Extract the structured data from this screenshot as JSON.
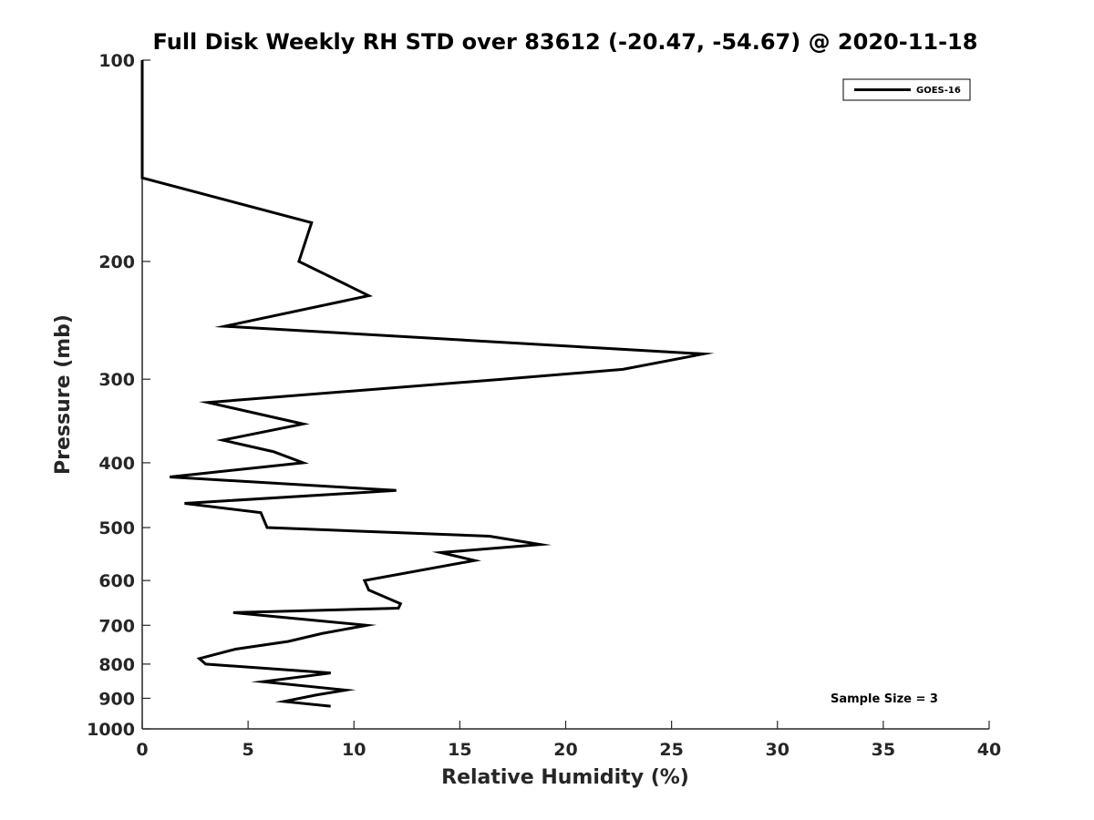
{
  "chart_data": {
    "type": "line",
    "title": "Full Disk Weekly RH STD over 83612 (-20.47, -54.67) @ 2020-11-18",
    "xlabel": "Relative Humidity (%)",
    "ylabel": "Pressure (mb)",
    "xlim": [
      0,
      40
    ],
    "ylim": [
      100,
      1000
    ],
    "yscale": "log",
    "yreversed": true,
    "xticks": [
      0,
      5,
      10,
      15,
      20,
      25,
      30,
      35,
      40
    ],
    "yticks": [
      100,
      200,
      300,
      400,
      500,
      600,
      700,
      800,
      900,
      1000
    ],
    "legend_position": "top-right",
    "annotation": "Sample Size = 3",
    "series": [
      {
        "name": "GOES-16",
        "color": "#000000",
        "points": [
          {
            "rh": 0.0,
            "p": 100
          },
          {
            "rh": 0.0,
            "p": 150
          },
          {
            "rh": 8.0,
            "p": 175
          },
          {
            "rh": 7.4,
            "p": 200
          },
          {
            "rh": 10.7,
            "p": 225
          },
          {
            "rh": 3.9,
            "p": 250
          },
          {
            "rh": 26.5,
            "p": 275
          },
          {
            "rh": 22.7,
            "p": 290
          },
          {
            "rh": 17.0,
            "p": 300
          },
          {
            "rh": 3.1,
            "p": 325
          },
          {
            "rh": 7.6,
            "p": 350
          },
          {
            "rh": 3.8,
            "p": 370
          },
          {
            "rh": 6.2,
            "p": 385
          },
          {
            "rh": 7.6,
            "p": 400
          },
          {
            "rh": 1.3,
            "p": 420
          },
          {
            "rh": 12.0,
            "p": 440
          },
          {
            "rh": 2.0,
            "p": 460
          },
          {
            "rh": 5.6,
            "p": 475
          },
          {
            "rh": 5.9,
            "p": 500
          },
          {
            "rh": 16.4,
            "p": 515
          },
          {
            "rh": 18.8,
            "p": 530
          },
          {
            "rh": 14.1,
            "p": 545
          },
          {
            "rh": 15.7,
            "p": 560
          },
          {
            "rh": 10.5,
            "p": 600
          },
          {
            "rh": 10.7,
            "p": 620
          },
          {
            "rh": 12.2,
            "p": 650
          },
          {
            "rh": 12.1,
            "p": 660
          },
          {
            "rh": 4.3,
            "p": 670
          },
          {
            "rh": 10.6,
            "p": 700
          },
          {
            "rh": 8.5,
            "p": 720
          },
          {
            "rh": 6.9,
            "p": 740
          },
          {
            "rh": 4.4,
            "p": 760
          },
          {
            "rh": 2.7,
            "p": 785
          },
          {
            "rh": 3.0,
            "p": 800
          },
          {
            "rh": 8.9,
            "p": 825
          },
          {
            "rh": 5.7,
            "p": 850
          },
          {
            "rh": 9.6,
            "p": 875
          },
          {
            "rh": 8.2,
            "p": 890
          },
          {
            "rh": 6.7,
            "p": 910
          },
          {
            "rh": 8.9,
            "p": 925
          }
        ]
      }
    ]
  }
}
